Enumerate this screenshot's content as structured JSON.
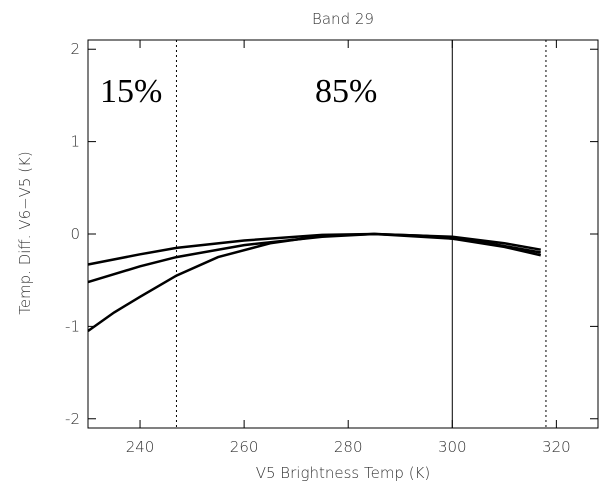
{
  "chart_data": {
    "type": "line",
    "title": "Band 29",
    "x_label": "V5 Brightness Temp (K)",
    "y_label": "Temp. Diff. V6−V5 (K)",
    "xlim": [
      230,
      328
    ],
    "xticks": [
      240,
      260,
      280,
      300,
      320
    ],
    "ylim": [
      -2.1,
      2.1
    ],
    "yticks": [
      -2,
      -1,
      0,
      1,
      2
    ],
    "series": [
      {
        "color": "#000000",
        "x": [
          230,
          235,
          240,
          247,
          255,
          265,
          275,
          285,
          295,
          305,
          317
        ],
        "values": [
          -1.05,
          -0.85,
          -0.68,
          -0.45,
          -0.25,
          -0.1,
          -0.02,
          0,
          -0.02,
          -0.08,
          -0.2
        ]
      },
      {
        "color": "#000000",
        "x": [
          230,
          240,
          247,
          260,
          275,
          285,
          300,
          310,
          317
        ],
        "values": [
          -0.33,
          -0.22,
          -0.15,
          -0.07,
          -0.01,
          0,
          -0.03,
          -0.1,
          -0.17
        ]
      },
      {
        "color": "#000000",
        "x": [
          230,
          240,
          247,
          260,
          275,
          285,
          300,
          310,
          317
        ],
        "values": [
          -0.52,
          -0.35,
          -0.25,
          -0.12,
          -0.03,
          0,
          -0.05,
          -0.14,
          -0.23
        ]
      }
    ],
    "vlines": [
      {
        "value": 247,
        "style": "dotted"
      },
      {
        "value": 300,
        "style": "solid"
      },
      {
        "value": 318,
        "style": "dotted"
      }
    ],
    "annotations": [
      "15%",
      "85%"
    ]
  }
}
